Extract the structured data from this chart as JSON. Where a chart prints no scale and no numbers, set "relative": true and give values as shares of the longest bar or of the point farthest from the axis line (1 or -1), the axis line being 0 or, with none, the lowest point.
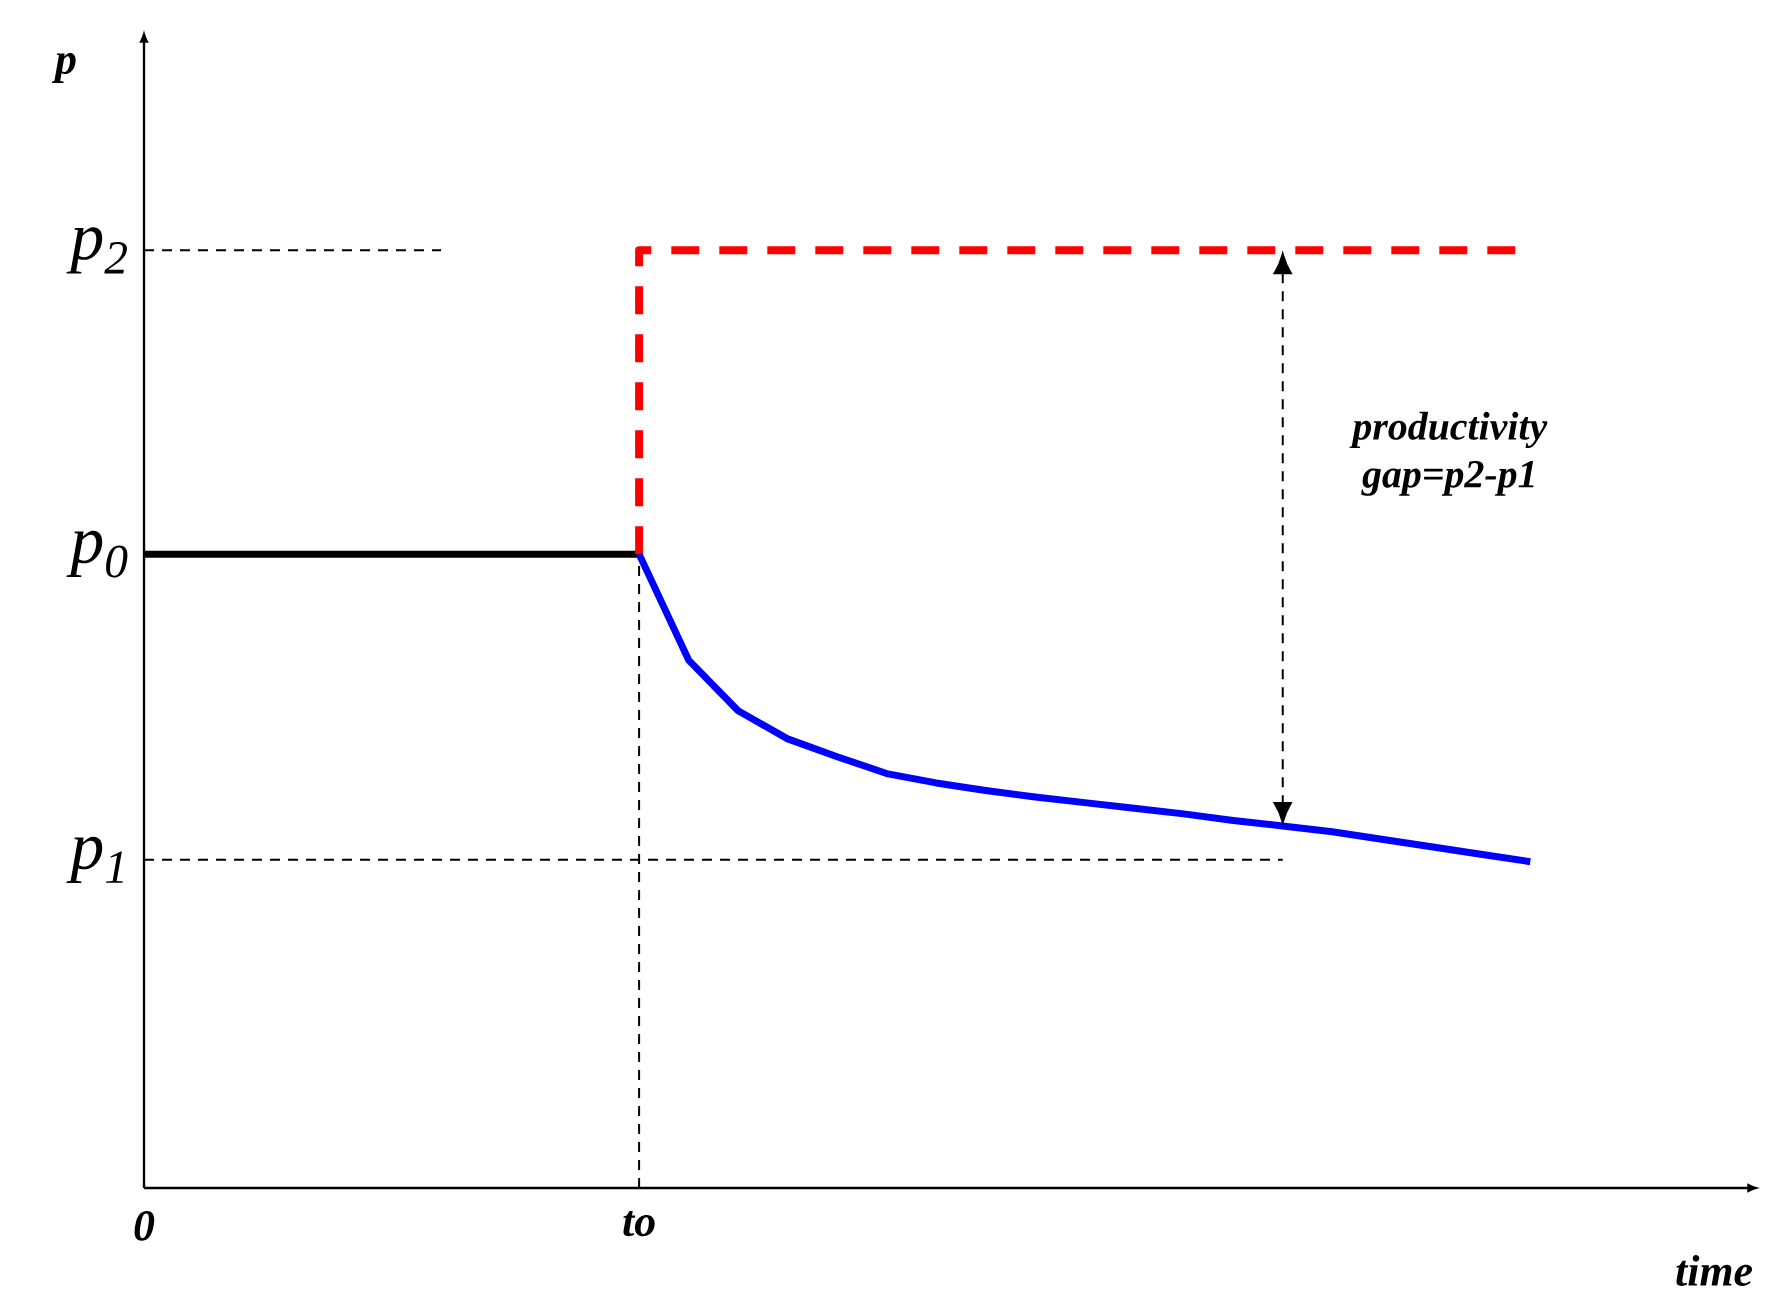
{
  "chart_data": {
    "type": "line",
    "relative": true,
    "xlabel": "time",
    "ylabel": "p",
    "categories": [
      "0",
      null,
      null,
      null,
      null,
      null,
      null,
      null,
      null,
      null,
      "to",
      null,
      null,
      null,
      null,
      null,
      null,
      null,
      null,
      null,
      null,
      null,
      null,
      null,
      null,
      null,
      null,
      null,
      null,
      null,
      null,
      null,
      null
    ],
    "series": [
      {
        "color": "#000000",
        "line_style": "solid",
        "values": [
          0.676,
          0.676,
          0.676,
          0.676,
          0.676,
          0.676,
          0.676,
          0.676,
          0.676,
          0.676,
          0.676,
          null,
          null,
          null,
          null,
          null,
          null,
          null,
          null,
          null,
          null,
          null,
          null,
          null,
          null,
          null,
          null,
          null,
          null,
          null,
          null,
          null,
          null
        ]
      },
      {
        "type": "step",
        "color": "#ff0000",
        "line_style": "dashed",
        "values": [
          null,
          null,
          null,
          null,
          null,
          null,
          null,
          null,
          null,
          null,
          0.676,
          1,
          1,
          1,
          1,
          1,
          1,
          1,
          1,
          1,
          1,
          1,
          1,
          1,
          1,
          1,
          1,
          1,
          1,
          null,
          null,
          null,
          null
        ]
      },
      {
        "color": "#0000ff",
        "line_style": "solid",
        "values": [
          null,
          null,
          null,
          null,
          null,
          null,
          null,
          null,
          null,
          null,
          0.676,
          0.563,
          0.509,
          0.479,
          0.46,
          0.442,
          0.432,
          0.424,
          0.417,
          0.411,
          0.405,
          0.399,
          0.392,
          0.386,
          0.38,
          0.372,
          0.364,
          0.356,
          0.348,
          null,
          null,
          null,
          null
        ]
      },
      {
        "color": "#000000",
        "line_style": "dotted",
        "values": [
          1,
          1,
          1,
          1,
          1,
          1,
          1,
          null,
          null,
          null,
          null,
          null,
          null,
          null,
          null,
          null,
          null,
          null,
          null,
          null,
          null,
          null,
          null,
          null,
          null,
          null,
          null,
          null,
          null,
          null,
          null,
          null,
          null
        ]
      },
      {
        "color": "#000000",
        "line_style": "dotted",
        "values": [
          0.35,
          0.35,
          0.35,
          0.35,
          0.35,
          0.35,
          0.35,
          0.35,
          0.35,
          0.35,
          0.35,
          0.35,
          0.35,
          0.35,
          0.35,
          0.35,
          0.35,
          0.35,
          0.35,
          0.35,
          0.35,
          0.35,
          0.35,
          0.35,
          null,
          null,
          null,
          null,
          null,
          null,
          null,
          null,
          null
        ]
      }
    ],
    "ref_lines": [
      {
        "axis": "x",
        "value": "to",
        "line_style": "dotted",
        "color": "#000000"
      }
    ],
    "annotations": [
      "p$_{2}$",
      "p$_{0}$",
      "p$_{1}$",
      "productivity gap=p2-p1"
    ]
  }
}
